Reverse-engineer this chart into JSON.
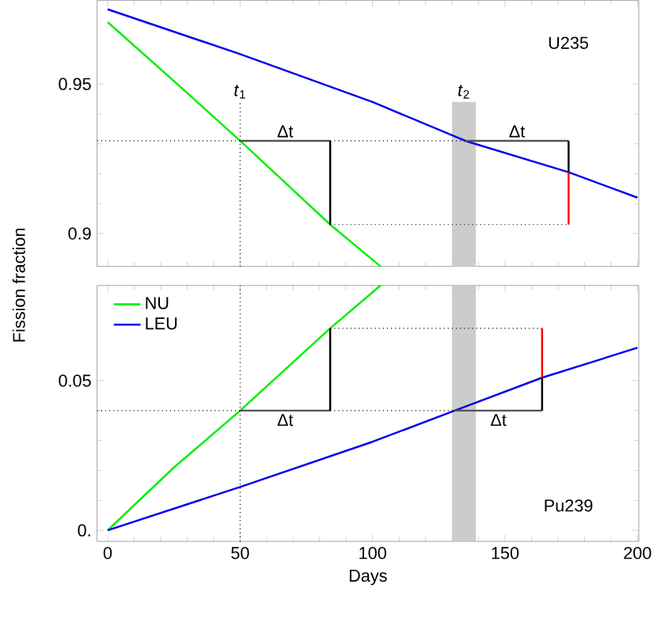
{
  "chart_data": [
    {
      "type": "line",
      "ylabel": "Fission fraction",
      "xlim": [
        -4,
        200.5
      ],
      "ylim": [
        0.889,
        0.978
      ],
      "xticks": [
        0,
        50,
        100,
        150,
        200
      ],
      "yticks": [
        0.9,
        0.95
      ],
      "tick_labels": "y",
      "series": [
        {
          "color": "#00ee00",
          "x": [
            0,
            25,
            50,
            84,
            103
          ],
          "values": [
            0.9707,
            0.951,
            0.931,
            0.903,
            0.889
          ]
        },
        {
          "color": "#0000ee",
          "x": [
            0,
            50,
            100,
            135,
            174,
            200
          ],
          "values": [
            0.975,
            0.96,
            0.944,
            0.931,
            0.9205,
            0.912
          ]
        },
        {
          "color": "#000000",
          "line_style": "dotted",
          "x": [
            50,
            50
          ],
          "values": [
            0.889,
            0.944
          ]
        },
        {
          "color": "#000000",
          "line_style": "dotted",
          "x": [
            -4,
            50
          ],
          "values": [
            0.931,
            0.931
          ]
        },
        {
          "color": "#000000",
          "line_style": "dotted",
          "x": [
            84,
            135
          ],
          "values": [
            0.931,
            0.931
          ]
        },
        {
          "color": "#000000",
          "line_style": "dotted",
          "x": [
            84,
            174
          ],
          "values": [
            0.903,
            0.903
          ]
        },
        {
          "color": "#555555",
          "x": [
            50,
            84
          ],
          "values": [
            0.931,
            0.931
          ]
        },
        {
          "color": "#555555",
          "x": [
            135,
            174
          ],
          "values": [
            0.931,
            0.931
          ]
        },
        {
          "color": "#000000",
          "x": [
            84,
            84
          ],
          "values": [
            0.903,
            0.931
          ]
        },
        {
          "color": "#000000",
          "x": [
            174,
            174
          ],
          "values": [
            0.9205,
            0.931
          ]
        },
        {
          "color": "#ff0000",
          "x": [
            174,
            174
          ],
          "values": [
            0.903,
            0.9205
          ]
        }
      ],
      "bands": [
        {
          "axis": "x",
          "from": 130,
          "to": 139,
          "color": "#cccccc"
        }
      ],
      "annotations": [
        {
          "text": "*t*$_{1}$",
          "x": 50,
          "y": 0.944
        },
        {
          "text": "*t*$_{2}$",
          "x": 134.5,
          "y": 0.944
        },
        {
          "text": "Δt",
          "x": 67,
          "y": 0.931
        },
        {
          "text": "Δt",
          "x": 154.5,
          "y": 0.931
        },
        "U235"
      ]
    },
    {
      "type": "line",
      "xlabel": "Days",
      "xlim": [
        -4,
        200.5
      ],
      "ylim": [
        -0.0037,
        0.0818
      ],
      "xticks": [
        0,
        50,
        100,
        150,
        200
      ],
      "yticks": [
        {
          "value": 0,
          "label": "0."
        },
        0.05
      ],
      "legend": "top left",
      "series": [
        {
          "name": "NU",
          "color": "#00ee00",
          "x": [
            0,
            25,
            50,
            84,
            103
          ],
          "values": [
            0,
            0.021,
            0.04,
            0.0675,
            0.0818
          ]
        },
        {
          "name": "LEU",
          "color": "#0000ee",
          "x": [
            0,
            50,
            100,
            131,
            164,
            200
          ],
          "values": [
            0,
            0.0145,
            0.0296,
            0.04,
            0.051,
            0.061
          ]
        },
        {
          "color": "#000000",
          "line_style": "dotted",
          "x": [
            50,
            50
          ],
          "values": [
            -0.0037,
            0.0818
          ]
        },
        {
          "color": "#000000",
          "line_style": "dotted",
          "x": [
            -4,
            50
          ],
          "values": [
            0.04,
            0.04
          ]
        },
        {
          "color": "#000000",
          "line_style": "dotted",
          "x": [
            84,
            131
          ],
          "values": [
            0.04,
            0.04
          ]
        },
        {
          "color": "#000000",
          "line_style": "dotted",
          "x": [
            84,
            164
          ],
          "values": [
            0.0675,
            0.0675
          ]
        },
        {
          "color": "#555555",
          "x": [
            50,
            84
          ],
          "values": [
            0.04,
            0.04
          ]
        },
        {
          "color": "#555555",
          "x": [
            131,
            164
          ],
          "values": [
            0.04,
            0.04
          ]
        },
        {
          "color": "#000000",
          "x": [
            84,
            84
          ],
          "values": [
            0.04,
            0.0675
          ]
        },
        {
          "color": "#000000",
          "x": [
            164,
            164
          ],
          "values": [
            0.04,
            0.051
          ]
        },
        {
          "color": "#ff0000",
          "x": [
            164,
            164
          ],
          "values": [
            0.051,
            0.0675
          ]
        }
      ],
      "bands": [
        {
          "axis": "x",
          "from": 130,
          "to": 139,
          "color": "#cccccc"
        }
      ],
      "annotations": [
        {
          "text": "Δt",
          "x": 67,
          "y": 0.04
        },
        {
          "text": "Δt",
          "x": 147.5,
          "y": 0.04
        },
        "Pu239"
      ]
    }
  ]
}
